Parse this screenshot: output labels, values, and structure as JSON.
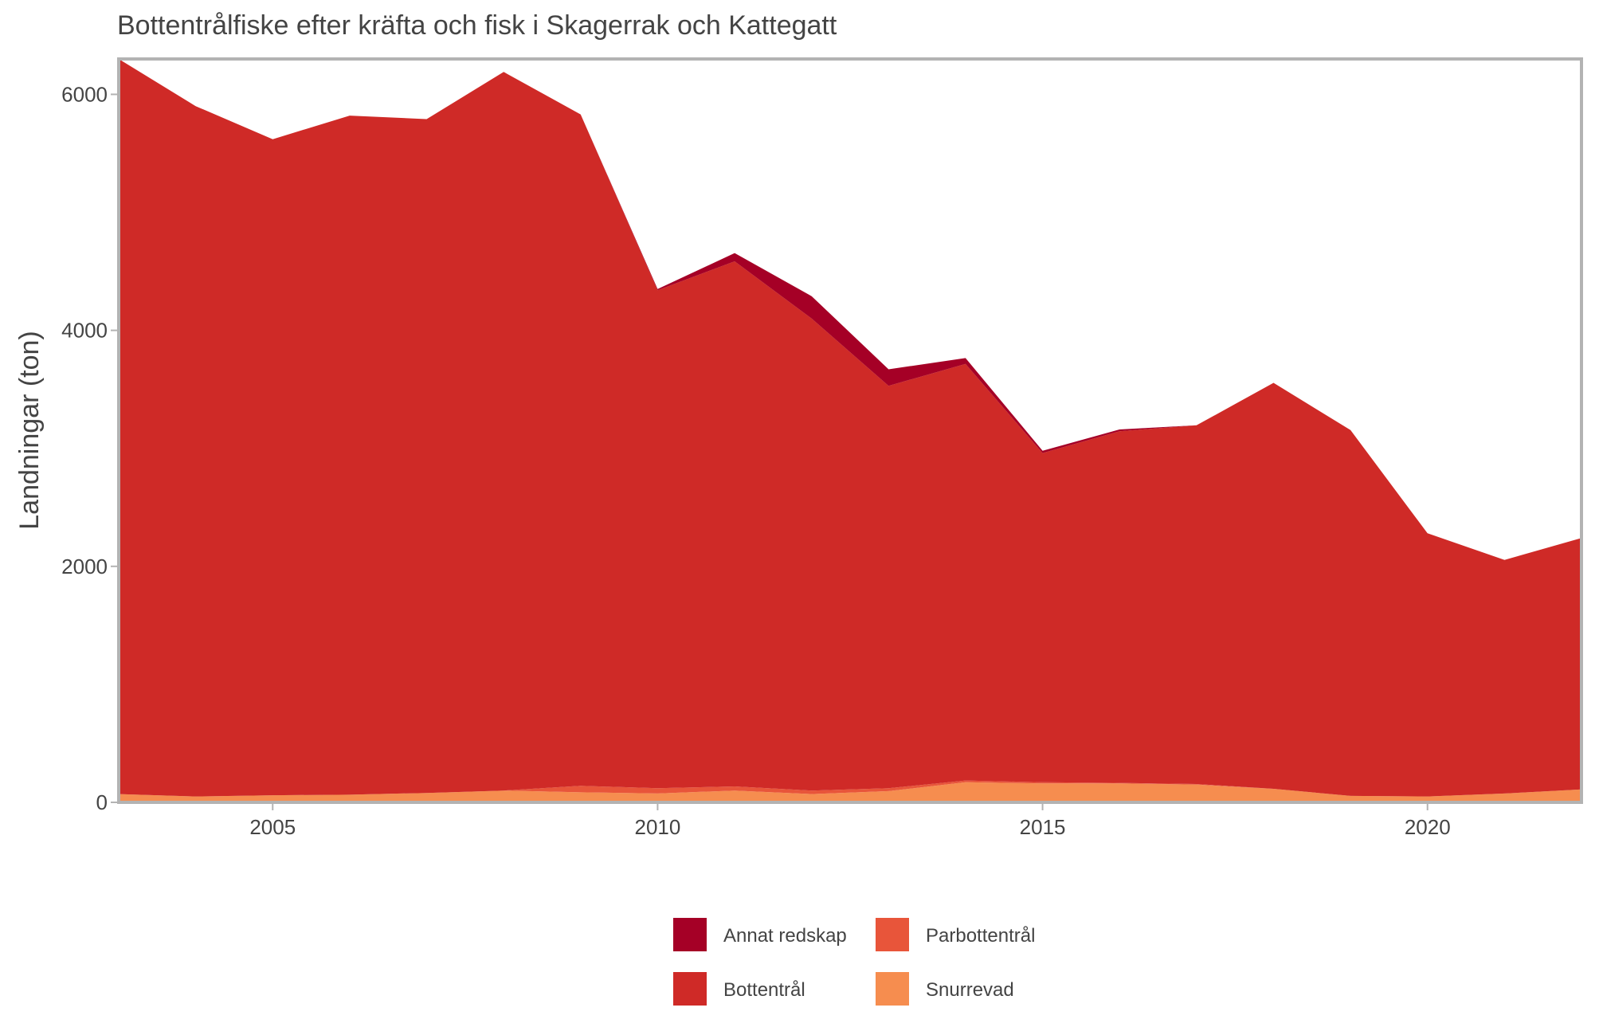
{
  "chart_data": {
    "type": "area",
    "stacked": true,
    "title": "Bottentrålfiske efter kräfta och fisk i Skagerrak och Kattegatt",
    "xlabel": "",
    "ylabel": "Landningar (ton)",
    "xlim": [
      2003,
      2022
    ],
    "ylim": [
      0,
      6300
    ],
    "x_ticks": [
      2005,
      2010,
      2015,
      2020
    ],
    "y_ticks": [
      0,
      2000,
      4000,
      6000
    ],
    "grid": false,
    "legend_position": "bottom",
    "x": [
      2003,
      2004,
      2005,
      2006,
      2007,
      2008,
      2009,
      2010,
      2011,
      2012,
      2013,
      2014,
      2015,
      2016,
      2017,
      2018,
      2019,
      2020,
      2021,
      2022
    ],
    "series": [
      {
        "name": "Snurrevad",
        "color": "#f68d4f",
        "values": [
          70,
          50,
          60,
          65,
          80,
          100,
          85,
          75,
          100,
          70,
          95,
          170,
          160,
          160,
          150,
          115,
          55,
          50,
          75,
          110
        ]
      },
      {
        "name": "Parbottentrål",
        "color": "#e8553a",
        "values": [
          0,
          0,
          0,
          0,
          0,
          0,
          55,
          45,
          35,
          30,
          25,
          15,
          10,
          5,
          5,
          0,
          0,
          0,
          0,
          0
        ]
      },
      {
        "name": "Bottentrål",
        "color": "#cf2a27",
        "values": [
          6230,
          5850,
          5560,
          5755,
          5710,
          6090,
          5690,
          4220,
          4450,
          4000,
          3410,
          3530,
          2790,
          2980,
          3040,
          3440,
          3100,
          2230,
          1980,
          2130
        ]
      },
      {
        "name": "Annat redskap",
        "color": "#a50026",
        "values": [
          0,
          0,
          0,
          0,
          0,
          0,
          0,
          10,
          70,
          190,
          140,
          50,
          20,
          15,
          0,
          0,
          0,
          0,
          0,
          0
        ]
      }
    ],
    "legend_order": [
      "Annat redskap",
      "Parbottentrål",
      "Bottentrål",
      "Snurrevad"
    ]
  }
}
